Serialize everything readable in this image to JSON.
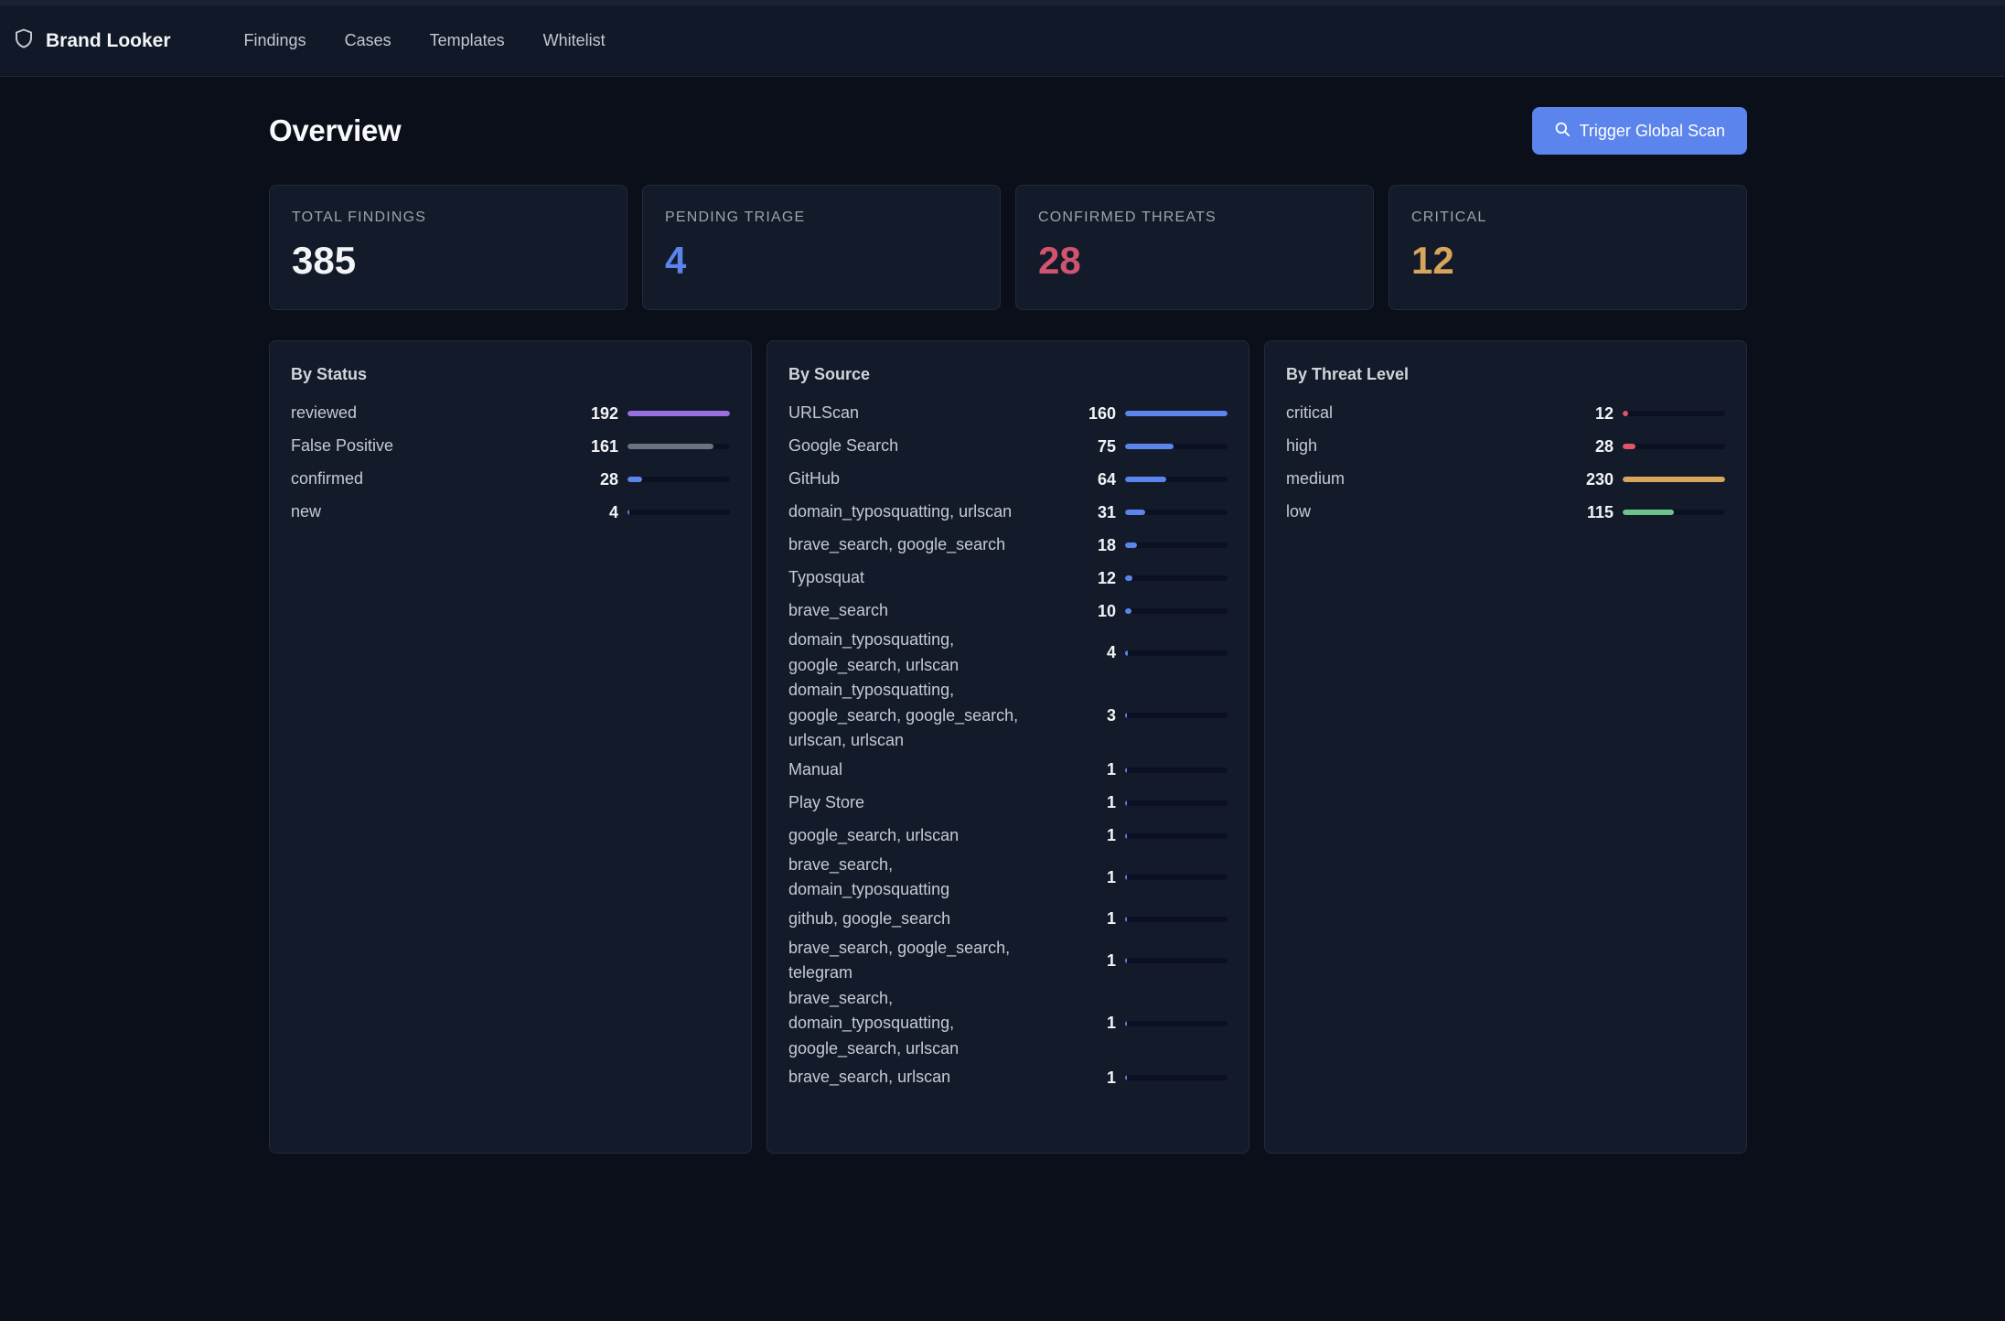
{
  "brand": {
    "name": "Brand Looker",
    "icon": "shield-icon"
  },
  "nav": [
    {
      "label": "Findings"
    },
    {
      "label": "Cases"
    },
    {
      "label": "Templates"
    },
    {
      "label": "Whitelist"
    }
  ],
  "page": {
    "title": "Overview",
    "scan_button": {
      "label": "Trigger Global Scan",
      "icon": "search-icon"
    }
  },
  "colors": {
    "accent": "#5b84ec",
    "pending": "#5b84ec",
    "confirmed": "#d0546f",
    "critical": "#d7a55b"
  },
  "stats": [
    {
      "label": "TOTAL FINDINGS",
      "value": "385",
      "color": "#f3f4f6"
    },
    {
      "label": "PENDING TRIAGE",
      "value": "4",
      "color": "#5b84ec"
    },
    {
      "label": "CONFIRMED THREATS",
      "value": "28",
      "color": "#d0546f"
    },
    {
      "label": "CRITICAL",
      "value": "12",
      "color": "#d7a55b"
    }
  ],
  "panels": {
    "status": {
      "title": "By Status",
      "max": 192,
      "rows": [
        {
          "label": "reviewed",
          "count": 192,
          "color": "#9a6fe0"
        },
        {
          "label": "False Positive",
          "count": 161,
          "color": "#6b7280"
        },
        {
          "label": "confirmed",
          "count": 28,
          "color": "#5b84ec"
        },
        {
          "label": "new",
          "count": 4,
          "color": "#5b84ec"
        }
      ]
    },
    "source": {
      "title": "By Source",
      "max": 160,
      "rows": [
        {
          "label": "URLScan",
          "count": 160,
          "color": "#5b84ec"
        },
        {
          "label": "Google Search",
          "count": 75,
          "color": "#5b84ec"
        },
        {
          "label": "GitHub",
          "count": 64,
          "color": "#5b84ec"
        },
        {
          "label": "domain_typosquatting, urlscan",
          "count": 31,
          "color": "#5b84ec"
        },
        {
          "label": "brave_search, google_search",
          "count": 18,
          "color": "#5b84ec"
        },
        {
          "label": "Typosquat",
          "count": 12,
          "color": "#5b84ec"
        },
        {
          "label": "brave_search",
          "count": 10,
          "color": "#5b84ec"
        },
        {
          "label": "domain_typosquatting, google_search, urlscan",
          "count": 4,
          "color": "#5b84ec"
        },
        {
          "label": "domain_typosquatting, google_search, google_search, urlscan, urlscan",
          "count": 3,
          "color": "#5b84ec"
        },
        {
          "label": "Manual",
          "count": 1,
          "color": "#5b84ec"
        },
        {
          "label": "Play Store",
          "count": 1,
          "color": "#5b84ec"
        },
        {
          "label": "google_search, urlscan",
          "count": 1,
          "color": "#5b84ec"
        },
        {
          "label": "brave_search, domain_typosquatting",
          "count": 1,
          "color": "#5b84ec"
        },
        {
          "label": "github, google_search",
          "count": 1,
          "color": "#5b84ec"
        },
        {
          "label": "brave_search, google_search, telegram",
          "count": 1,
          "color": "#5b84ec"
        },
        {
          "label": "brave_search, domain_typosquatting, google_search, urlscan",
          "count": 1,
          "color": "#5b84ec"
        },
        {
          "label": "brave_search, urlscan",
          "count": 1,
          "color": "#5b84ec"
        }
      ]
    },
    "threat": {
      "title": "By Threat Level",
      "max": 230,
      "rows": [
        {
          "label": "critical",
          "count": 12,
          "color": "#e05569"
        },
        {
          "label": "high",
          "count": 28,
          "color": "#e05569"
        },
        {
          "label": "medium",
          "count": 230,
          "color": "#d7a55b"
        },
        {
          "label": "low",
          "count": 115,
          "color": "#6cc48a"
        }
      ]
    }
  }
}
